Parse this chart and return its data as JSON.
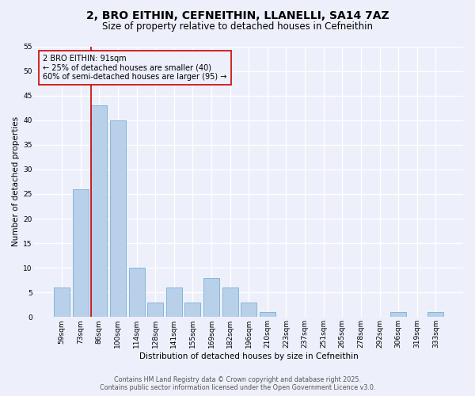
{
  "title": "2, BRO EITHIN, CEFNEITHIN, LLANELLI, SA14 7AZ",
  "subtitle": "Size of property relative to detached houses in Cefneithin",
  "xlabel": "Distribution of detached houses by size in Cefneithin",
  "ylabel": "Number of detached properties",
  "bar_labels": [
    "59sqm",
    "73sqm",
    "86sqm",
    "100sqm",
    "114sqm",
    "128sqm",
    "141sqm",
    "155sqm",
    "169sqm",
    "182sqm",
    "196sqm",
    "210sqm",
    "223sqm",
    "237sqm",
    "251sqm",
    "265sqm",
    "278sqm",
    "292sqm",
    "306sqm",
    "319sqm",
    "333sqm"
  ],
  "bar_values": [
    6,
    26,
    43,
    40,
    10,
    3,
    6,
    3,
    8,
    6,
    3,
    1,
    0,
    0,
    0,
    0,
    0,
    0,
    1,
    0,
    1
  ],
  "bar_color": "#b8d0ea",
  "bar_edge_color": "#7aafd4",
  "vline_x_index": 2,
  "vline_color": "#cc0000",
  "ylim": [
    0,
    55
  ],
  "yticks": [
    0,
    5,
    10,
    15,
    20,
    25,
    30,
    35,
    40,
    45,
    50,
    55
  ],
  "annotation_title": "2 BRO EITHIN: 91sqm",
  "annotation_line1": "← 25% of detached houses are smaller (40)",
  "annotation_line2": "60% of semi-detached houses are larger (95) →",
  "footer_line1": "Contains HM Land Registry data © Crown copyright and database right 2025.",
  "footer_line2": "Contains public sector information licensed under the Open Government Licence v3.0.",
  "background_color": "#edf0fa",
  "grid_color": "#ffffff",
  "title_fontsize": 10,
  "subtitle_fontsize": 8.5,
  "axis_label_fontsize": 7.5,
  "tick_fontsize": 6.5,
  "footer_fontsize": 5.8,
  "annotation_fontsize": 7.0
}
